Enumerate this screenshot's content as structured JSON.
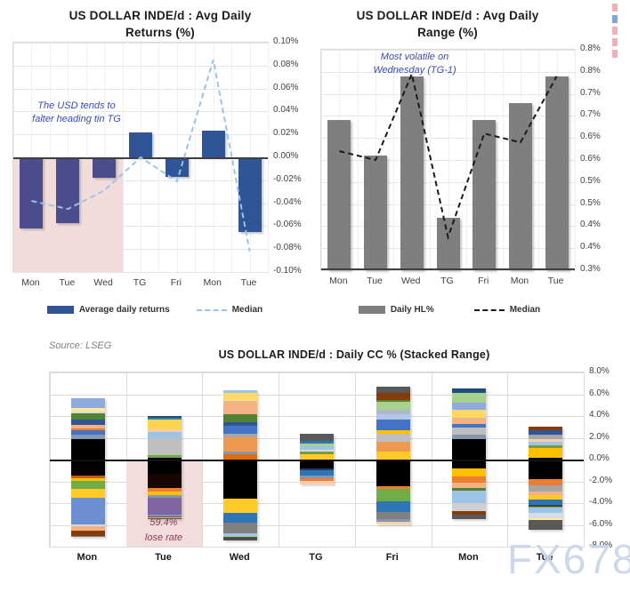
{
  "source_note": "Source: LSEG",
  "watermark": "FX678",
  "edge_marks": {
    "colors": [
      "#F2AEB9",
      "#7FA8D9",
      "#F2AEB9",
      "#F2AEB9",
      "#F2AEB9"
    ]
  },
  "chart_data": [
    {
      "id": "returns",
      "type": "bar",
      "title": "US DOLLAR INDE/d : Avg Daily Returns (%)",
      "title_lines": [
        "US DOLLAR INDE/d : Avg Daily",
        "Returns (%)"
      ],
      "categories": [
        "Mon",
        "Tue",
        "Wed",
        "TG",
        "Fri",
        "Mon",
        "Tue"
      ],
      "series": [
        {
          "name": "Average daily returns",
          "type": "bar",
          "values": [
            -0.062,
            -0.057,
            -0.018,
            0.022,
            -0.017,
            0.023,
            -0.065
          ]
        },
        {
          "name": "Median",
          "type": "dashed-line",
          "values": [
            -0.038,
            -0.045,
            -0.029,
            0.0,
            -0.021,
            0.085,
            -0.082
          ]
        }
      ],
      "ylim": [
        -0.1,
        0.1
      ],
      "yticks": [
        "0.10%",
        "0.08%",
        "0.06%",
        "0.04%",
        "0.02%",
        "0.00%",
        "-0.02%",
        "-0.04%",
        "-0.06%",
        "-0.08%",
        "-0.10%"
      ],
      "annotation": [
        "The USD tends to",
        "falter heading tin TG"
      ],
      "highlight": {
        "categories": [
          "Mon",
          "Tue",
          "Wed"
        ],
        "region": "below-zero",
        "color": "#F2DCDB"
      },
      "colors": {
        "bar": "#2F5597",
        "bar_highlighted": "#4C4C8C",
        "median": "#9DC3E6"
      },
      "legend_position": "bottom",
      "grid": true
    },
    {
      "id": "range",
      "type": "bar",
      "title": "US DOLLAR INDE/d : Avg Daily Range (%)",
      "title_lines": [
        "US DOLLAR INDE/d : Avg Daily",
        "Range (%)"
      ],
      "categories": [
        "Mon",
        "Tue",
        "Wed",
        "TG",
        "Fri",
        "Mon",
        "Tue"
      ],
      "series": [
        {
          "name": "Daily HL%",
          "type": "bar",
          "values": [
            0.64,
            0.56,
            0.74,
            0.42,
            0.64,
            0.68,
            0.74
          ]
        },
        {
          "name": "Median",
          "type": "dashed-line",
          "values": [
            0.57,
            0.55,
            0.745,
            0.375,
            0.61,
            0.59,
            0.74
          ]
        }
      ],
      "ylim": [
        0.3,
        0.8
      ],
      "yticks": [
        "0.8%",
        "0.8%",
        "0.7%",
        "0.7%",
        "0.6%",
        "0.6%",
        "0.5%",
        "0.5%",
        "0.4%",
        "0.4%",
        "0.3%"
      ],
      "annotation": [
        "Most volatile on",
        "Wednesday (TG-1)"
      ],
      "colors": {
        "bar": "#7F7F7F",
        "median": "#1A1A1A"
      },
      "legend_position": "bottom",
      "grid": true
    },
    {
      "id": "stacked",
      "type": "stacked-bar",
      "title": "US DOLLAR INDE/d : Daily CC % (Stacked Range)",
      "categories": [
        "Mon",
        "Tue",
        "Wed",
        "TG",
        "Fri",
        "Mon",
        "Tue"
      ],
      "ylim": [
        -8,
        8
      ],
      "yticks": [
        "8.0%",
        "6.0%",
        "4.0%",
        "2.0%",
        "0.0%",
        "-2.0%",
        "-4.0%",
        "-6.0%",
        "-8.0%"
      ],
      "highlight": {
        "category": "Tue",
        "annotation": [
          "59.4%",
          "lose rate"
        ],
        "color": "#F2DCDC",
        "region": "below-zero"
      },
      "grid": true,
      "bars": [
        {
          "top": 5.6,
          "segments": [
            [
              "#8FAADC",
              0.9
            ],
            [
              "#FFE699",
              0.3
            ],
            [
              "#D9D9D9",
              0.15
            ],
            [
              "#548235",
              0.6
            ],
            [
              "#2E5597",
              0.45
            ],
            [
              "#F4B183",
              0.35
            ],
            [
              "#ED7D31",
              0.15
            ],
            [
              "#4472C4",
              0.45
            ],
            [
              "#8497B0",
              0.35
            ],
            [
              "#000000",
              3.35
            ],
            [
              "#C55A11",
              0.3
            ],
            [
              "#FFC000",
              0.25
            ],
            [
              "#70AD47",
              0.7
            ],
            [
              "#FFC928",
              0.8
            ],
            [
              "#6B8FD0",
              2.45
            ],
            [
              "#D9D9D9",
              0.2
            ],
            [
              "#F4B183",
              0.4
            ],
            [
              "#843C0C",
              0.45
            ],
            [
              "#7F7F7F",
              0.1
            ]
          ]
        },
        {
          "top": 4.0,
          "segments": [
            [
              "#1F4E79",
              0.2
            ],
            [
              "#31859C",
              0.15
            ],
            [
              "#FFD54F",
              0.85
            ],
            [
              "#F8CBAD",
              0.25
            ],
            [
              "#9DC3E6",
              0.6
            ],
            [
              "#BFBFBF",
              1.55
            ],
            [
              "#70AD47",
              0.25
            ],
            [
              "#000000",
              1.45
            ],
            [
              "#1A0505",
              1.3
            ],
            [
              "#ED7D31",
              0.35
            ],
            [
              "#FFC000",
              0.3
            ],
            [
              "#8497B0",
              0.3
            ],
            [
              "#8064A2",
              1.5
            ],
            [
              "#8497B0",
              0.15
            ],
            [
              "#595959",
              0.1
            ],
            [
              "#F4B183",
              0.1
            ],
            [
              "#4E5B31",
              0.1
            ]
          ]
        },
        {
          "top": 6.4,
          "segments": [
            [
              "#9DC3E6",
              0.3
            ],
            [
              "#FFD966",
              0.6
            ],
            [
              "#FFE699",
              0.15
            ],
            [
              "#F4B183",
              1.2
            ],
            [
              "#548235",
              0.7
            ],
            [
              "#2E5597",
              0.35
            ],
            [
              "#4472C4",
              0.75
            ],
            [
              "#A6A6A6",
              0.3
            ],
            [
              "#ED9950",
              1.3
            ],
            [
              "#8497B0",
              0.3
            ],
            [
              "#E26B0A",
              0.55
            ],
            [
              "#000000",
              3.5
            ],
            [
              "#FFC928",
              1.3
            ],
            [
              "#2E75B6",
              0.9
            ],
            [
              "#808080",
              1.0
            ],
            [
              "#9DC3E6",
              0.2
            ],
            [
              "#A9D18E",
              0.15
            ],
            [
              "#4D4D4D",
              0.3
            ]
          ]
        },
        {
          "top": 2.4,
          "segments": [
            [
              "#595959",
              0.7
            ],
            [
              "#2E75B6",
              0.25
            ],
            [
              "#A9D18E",
              0.25
            ],
            [
              "#9DC3E6",
              0.3
            ],
            [
              "#D9D9D9",
              0.15
            ],
            [
              "#7A9A3D",
              0.3
            ],
            [
              "#FFC928",
              0.55
            ],
            [
              "#000000",
              0.7
            ],
            [
              "#1F3864",
              0.2
            ],
            [
              "#2E75B6",
              0.45
            ],
            [
              "#8497B0",
              0.25
            ],
            [
              "#ED7D31",
              0.3
            ],
            [
              "#F8CBAD",
              0.3
            ]
          ]
        },
        {
          "top": 6.7,
          "segments": [
            [
              "#595959",
              0.6
            ],
            [
              "#843C0C",
              0.6
            ],
            [
              "#548235",
              0.2
            ],
            [
              "#A9D18E",
              0.7
            ],
            [
              "#ADB9CA",
              0.45
            ],
            [
              "#B4C7E7",
              0.5
            ],
            [
              "#4472C4",
              1.0
            ],
            [
              "#FFC000",
              0.3
            ],
            [
              "#BFBFBF",
              0.75
            ],
            [
              "#ED9950",
              0.85
            ],
            [
              "#FFC928",
              0.9
            ],
            [
              "#000000",
              2.3
            ],
            [
              "#ED7D31",
              0.25
            ],
            [
              "#70AD47",
              1.15
            ],
            [
              "#2E75B6",
              1.0
            ],
            [
              "#808080",
              0.6
            ],
            [
              "#8497B0",
              0.3
            ],
            [
              "#F8CBAD",
              0.15
            ],
            [
              "#FFE699",
              0.1
            ]
          ]
        },
        {
          "top": 6.5,
          "segments": [
            [
              "#1F4E79",
              0.35
            ],
            [
              "#A9D18E",
              0.9
            ],
            [
              "#8FAADC",
              0.7
            ],
            [
              "#FFD966",
              0.7
            ],
            [
              "#F4B183",
              0.6
            ],
            [
              "#4472C4",
              0.3
            ],
            [
              "#BFBFBF",
              0.7
            ],
            [
              "#8497B0",
              0.4
            ],
            [
              "#000000",
              2.7
            ],
            [
              "#FFC000",
              0.7
            ],
            [
              "#ED7D31",
              0.6
            ],
            [
              "#F4B183",
              0.45
            ],
            [
              "#548235",
              0.25
            ],
            [
              "#9DC3E6",
              1.2
            ],
            [
              "#D0CECE",
              0.7
            ],
            [
              "#843C0C",
              0.3
            ],
            [
              "#595959",
              0.45
            ]
          ]
        },
        {
          "top": 3.0,
          "segments": [
            [
              "#843C0C",
              0.3
            ],
            [
              "#2E5597",
              0.45
            ],
            [
              "#A6A6A6",
              0.35
            ],
            [
              "#F8CBAD",
              0.3
            ],
            [
              "#9DC3E6",
              0.3
            ],
            [
              "#7A9A3D",
              0.25
            ],
            [
              "#FFC000",
              0.85
            ],
            [
              "#000000",
              2.0
            ],
            [
              "#ED7D31",
              0.55
            ],
            [
              "#A6A6A6",
              0.6
            ],
            [
              "#F4B183",
              0.3
            ],
            [
              "#FFC928",
              0.45
            ],
            [
              "#2E75B6",
              0.45
            ],
            [
              "#404040",
              0.15
            ],
            [
              "#70AD47",
              0.15
            ],
            [
              "#9DC3E6",
              0.45
            ],
            [
              "#D6DCE5",
              0.5
            ],
            [
              "#FFE699",
              0.2
            ],
            [
              "#595959",
              0.85
            ]
          ]
        }
      ]
    }
  ]
}
